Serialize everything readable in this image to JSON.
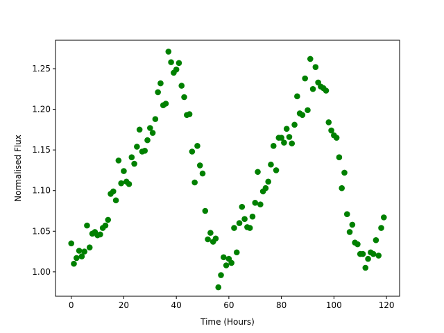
{
  "chart_data": {
    "type": "scatter",
    "title": "",
    "xlabel": "Time (Hours)",
    "ylabel": "Normalised Flux",
    "xlim": [
      -6,
      125
    ],
    "ylim": [
      0.97,
      1.285
    ],
    "xticks": [
      0,
      20,
      40,
      60,
      80,
      100,
      120
    ],
    "yticks": [
      1.0,
      1.05,
      1.1,
      1.15,
      1.2,
      1.25
    ],
    "xtick_labels": [
      "0",
      "20",
      "40",
      "60",
      "80",
      "100",
      "120"
    ],
    "ytick_labels": [
      "1.00",
      "1.05",
      "1.10",
      "1.15",
      "1.20",
      "1.25"
    ],
    "grid": false,
    "legend": "none",
    "color": "#008000",
    "series": [
      {
        "x": [
          0,
          1,
          2,
          3,
          4,
          5,
          6,
          7,
          8,
          9,
          10,
          11,
          12,
          13,
          14,
          15,
          16,
          17,
          18,
          19,
          20,
          21,
          22,
          23,
          24,
          25,
          26,
          27,
          28,
          29,
          30,
          31,
          32,
          33,
          34,
          35,
          36,
          37,
          38,
          39,
          40,
          41,
          42,
          43,
          44,
          45,
          46,
          47,
          48,
          49,
          50,
          51,
          52,
          53,
          54,
          55,
          56,
          57,
          58,
          59,
          60,
          61,
          62,
          63,
          64,
          65,
          66,
          67,
          68,
          69,
          70,
          71,
          72,
          73,
          74,
          75,
          76,
          77,
          78,
          79,
          80,
          81,
          82,
          83,
          84,
          85,
          86,
          87,
          88,
          89,
          90,
          91,
          92,
          93,
          94,
          95,
          96,
          97,
          98,
          99,
          100,
          101,
          102,
          103,
          104,
          105,
          106,
          107,
          108,
          109,
          110,
          111,
          112,
          113,
          114,
          115,
          116,
          117,
          118,
          119
        ],
        "y": [
          1.035,
          1.01,
          1.017,
          1.026,
          1.019,
          1.025,
          1.057,
          1.03,
          1.047,
          1.049,
          1.045,
          1.046,
          1.054,
          1.057,
          1.064,
          1.096,
          1.099,
          1.088,
          1.137,
          1.109,
          1.124,
          1.111,
          1.108,
          1.141,
          1.133,
          1.154,
          1.175,
          1.148,
          1.149,
          1.162,
          1.177,
          1.171,
          1.188,
          1.221,
          1.232,
          1.205,
          1.207,
          1.271,
          1.258,
          1.245,
          1.249,
          1.257,
          1.229,
          1.215,
          1.193,
          1.194,
          1.148,
          1.11,
          1.155,
          1.131,
          1.121,
          1.075,
          1.04,
          1.048,
          1.037,
          1.041,
          0.981,
          0.996,
          1.018,
          1.008,
          1.016,
          1.011,
          1.054,
          1.024,
          1.06,
          1.08,
          1.065,
          1.055,
          1.054,
          1.068,
          1.085,
          1.123,
          1.083,
          1.099,
          1.103,
          1.111,
          1.132,
          1.155,
          1.125,
          1.165,
          1.165,
          1.159,
          1.176,
          1.166,
          1.158,
          1.181,
          1.216,
          1.195,
          1.193,
          1.238,
          1.199,
          1.262,
          1.225,
          1.252,
          1.233,
          1.228,
          1.226,
          1.223,
          1.184,
          1.174,
          1.168,
          1.165,
          1.141,
          1.103,
          1.122,
          1.071,
          1.049,
          1.058,
          1.036,
          1.034,
          1.022,
          1.022,
          1.005,
          1.016,
          1.024,
          1.022,
          1.039,
          1.02,
          1.054,
          1.067
        ]
      }
    ]
  }
}
